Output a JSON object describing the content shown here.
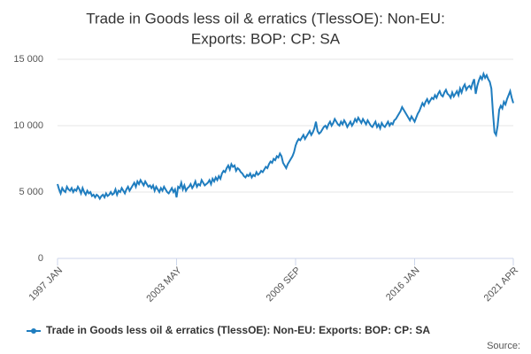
{
  "chart_data": {
    "type": "line",
    "title": "Trade in Goods less oil & erratics (TlessOE): Non-EU:",
    "subtitle": "Exports: BOP: CP: SA",
    "source": "Source:",
    "categories": [
      "1997 JAN",
      null,
      null,
      null,
      null,
      null,
      null,
      null,
      null,
      null,
      null,
      null,
      null,
      null,
      null,
      null,
      null,
      null,
      null,
      null,
      null,
      null,
      null,
      null,
      null,
      null,
      null,
      null,
      null,
      null,
      null,
      null,
      null,
      null,
      null,
      null,
      null,
      null,
      null,
      null,
      null,
      null,
      null,
      null,
      null,
      null,
      null,
      null,
      null,
      null,
      null,
      null,
      null,
      null,
      null,
      null,
      null,
      null,
      null,
      null,
      null,
      null,
      null,
      null,
      null,
      null,
      null,
      null,
      null,
      null,
      null,
      null,
      null,
      null,
      null,
      null,
      "2003 MAY",
      null,
      null,
      null,
      null,
      null,
      null,
      null,
      null,
      null,
      null,
      null,
      null,
      null,
      null,
      null,
      null,
      null,
      null,
      null,
      null,
      null,
      null,
      null,
      null,
      null,
      null,
      null,
      null,
      null,
      null,
      null,
      null,
      null,
      null,
      null,
      null,
      null,
      null,
      null,
      null,
      null,
      null,
      null,
      null,
      null,
      null,
      null,
      null,
      null,
      null,
      null,
      null,
      null,
      null,
      null,
      null,
      null,
      null,
      null,
      null,
      null,
      null,
      null,
      null,
      null,
      null,
      null,
      null,
      null,
      null,
      null,
      null,
      null,
      null,
      null,
      "2009 SEP",
      null,
      null,
      null,
      null,
      null,
      null,
      null,
      null,
      null,
      null,
      null,
      null,
      null,
      null,
      null,
      null,
      null,
      null,
      null,
      null,
      null,
      null,
      null,
      null,
      null,
      null,
      null,
      null,
      null,
      null,
      null,
      null,
      null,
      null,
      null,
      null,
      null,
      null,
      null,
      null,
      null,
      null,
      null,
      null,
      null,
      null,
      null,
      null,
      null,
      null,
      null,
      null,
      null,
      null,
      null,
      null,
      null,
      null,
      null,
      null,
      null,
      null,
      null,
      null,
      null,
      null,
      null,
      null,
      null,
      null,
      null,
      null,
      null,
      null,
      null,
      "2016 JAN",
      null,
      null,
      null,
      null,
      null,
      null,
      null,
      null,
      null,
      null,
      null,
      null,
      null,
      null,
      null,
      null,
      null,
      null,
      null,
      null,
      null,
      null,
      null,
      null,
      null,
      null,
      null,
      null,
      null,
      null,
      null,
      null,
      null,
      null,
      null,
      null,
      null,
      null,
      null,
      null,
      null,
      null,
      null,
      null,
      null,
      null,
      null,
      null,
      null,
      null,
      null,
      null,
      null,
      null,
      null,
      null,
      null,
      null,
      null,
      null,
      null,
      null,
      "2021 APR"
    ],
    "series": [
      {
        "name": "Trade in Goods less oil & erratics (TlessOE): Non-EU: Exports: BOP: CP: SA",
        "color": "#1f7dbf",
        "values": [
          5600,
          5200,
          4900,
          5300,
          5100,
          5000,
          5400,
          5200,
          5100,
          5300,
          5000,
          5200,
          5100,
          5400,
          5200,
          4900,
          5300,
          5000,
          4800,
          5100,
          4900,
          5000,
          4700,
          4800,
          4600,
          4800,
          4700,
          4500,
          4700,
          4800,
          4600,
          4900,
          4700,
          4800,
          5000,
          4800,
          4900,
          5200,
          4800,
          5100,
          5000,
          5300,
          5100,
          4900,
          5200,
          5400,
          5100,
          5300,
          5500,
          5700,
          5400,
          5800,
          5600,
          5900,
          5700,
          5500,
          5800,
          5600,
          5400,
          5500,
          5300,
          5500,
          5100,
          5400,
          5200,
          5000,
          5300,
          5100,
          5400,
          5200,
          5000,
          4900,
          5100,
          5300,
          5000,
          5200,
          4600,
          5400,
          5300,
          5700,
          5200,
          5500,
          5100,
          5300,
          5400,
          5600,
          5300,
          5500,
          5800,
          5400,
          5600,
          5500,
          5900,
          5700,
          5500,
          5600,
          5700,
          5900,
          5600,
          6000,
          5800,
          6100,
          5900,
          6200,
          6000,
          6400,
          6600,
          6500,
          6800,
          7000,
          6700,
          7100,
          6900,
          7000,
          6600,
          6800,
          6700,
          6500,
          6400,
          6200,
          6100,
          6300,
          6200,
          6400,
          6100,
          6300,
          6200,
          6500,
          6300,
          6400,
          6600,
          6500,
          6700,
          6900,
          6800,
          7100,
          7300,
          7200,
          7500,
          7400,
          7700,
          7600,
          7900,
          7700,
          7200,
          7000,
          6800,
          7100,
          7300,
          7500,
          7700,
          8000,
          8500,
          8800,
          9000,
          8900,
          9100,
          9300,
          9000,
          9200,
          9400,
          9600,
          9300,
          9500,
          9800,
          10300,
          9600,
          9400,
          9500,
          9700,
          9900,
          10000,
          9800,
          10100,
          10300,
          10000,
          10200,
          10500,
          10300,
          10100,
          10000,
          10300,
          10100,
          10400,
          10200,
          9900,
          10100,
          10300,
          10000,
          10200,
          10500,
          10300,
          10600,
          10400,
          10200,
          10500,
          10300,
          10100,
          10400,
          10200,
          10000,
          9900,
          10100,
          10300,
          9900,
          10100,
          9800,
          10200,
          10000,
          9900,
          10100,
          10300,
          10000,
          10200,
          10100,
          10400,
          10500,
          10700,
          10900,
          11100,
          11400,
          11200,
          11000,
          10800,
          10600,
          10400,
          10700,
          10500,
          10300,
          10600,
          10900,
          11100,
          11400,
          11700,
          11500,
          11800,
          12000,
          11700,
          11900,
          12100,
          12000,
          12300,
          12100,
          12400,
          12600,
          12300,
          12200,
          12500,
          12700,
          12400,
          12300,
          12100,
          12500,
          12200,
          12400,
          12600,
          12300,
          12800,
          12500,
          12900,
          13100,
          12700,
          12900,
          13000,
          12800,
          13200,
          13500,
          12400,
          13000,
          13400,
          13700,
          13500,
          13900,
          13600,
          13800,
          13500,
          13300,
          12800,
          11000,
          9500,
          9300,
          10000,
          11200,
          11500,
          11300,
          11800,
          11600,
          12000,
          12300,
          12600,
          12100,
          11700
        ]
      }
    ],
    "ylim": [
      0,
      15000
    ],
    "yticks": [
      0,
      {
        "value": 5000,
        "label": "5 000"
      },
      {
        "value": 10000,
        "label": "10 000"
      },
      {
        "value": 15000,
        "label": "15 000"
      }
    ],
    "grid": true
  }
}
